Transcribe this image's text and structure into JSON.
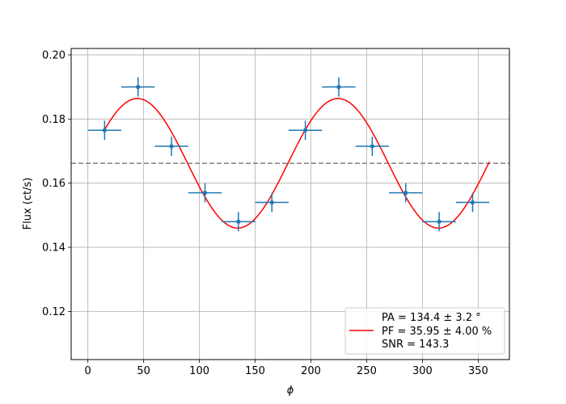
{
  "chart_data": {
    "type": "scatter",
    "xlabel": "ϕ",
    "ylabel": "Flux (ct/s)",
    "xlim": [
      -15,
      378
    ],
    "ylim": [
      0.105,
      0.202
    ],
    "x_ticks": [
      0,
      50,
      100,
      150,
      200,
      250,
      300,
      350
    ],
    "y_ticks": [
      0.12,
      0.14,
      0.16,
      0.18,
      0.2
    ],
    "y_tick_labels": [
      "0.12",
      "0.14",
      "0.16",
      "0.18",
      "0.20"
    ],
    "grid": true,
    "legend_placement": "lower-right",
    "data_points": {
      "color": "#1f77b4",
      "x": [
        15,
        45,
        75,
        105,
        135,
        165,
        195,
        225,
        255,
        285,
        315,
        345
      ],
      "y": [
        0.1765,
        0.19,
        0.1715,
        0.157,
        0.148,
        0.154,
        0.1765,
        0.19,
        0.1715,
        0.157,
        0.148,
        0.154
      ],
      "x_err": 15,
      "y_err": 0.003
    },
    "model_curve": {
      "color": "#ff0000",
      "mean": 0.1662,
      "amplitude": 0.0202,
      "period": 180,
      "phase_peak": 44.4,
      "x_range": [
        15,
        360
      ],
      "legend_label": "PF = 35.95 ± 4.00 %"
    },
    "mean_line": {
      "y": 0.1662,
      "color": "#808080",
      "style": "dashed"
    },
    "legend": {
      "lines": [
        "PA = 134.4 ± 3.2 °",
        "PF = 35.95 ± 4.00 %",
        "SNR = 143.3"
      ]
    }
  }
}
